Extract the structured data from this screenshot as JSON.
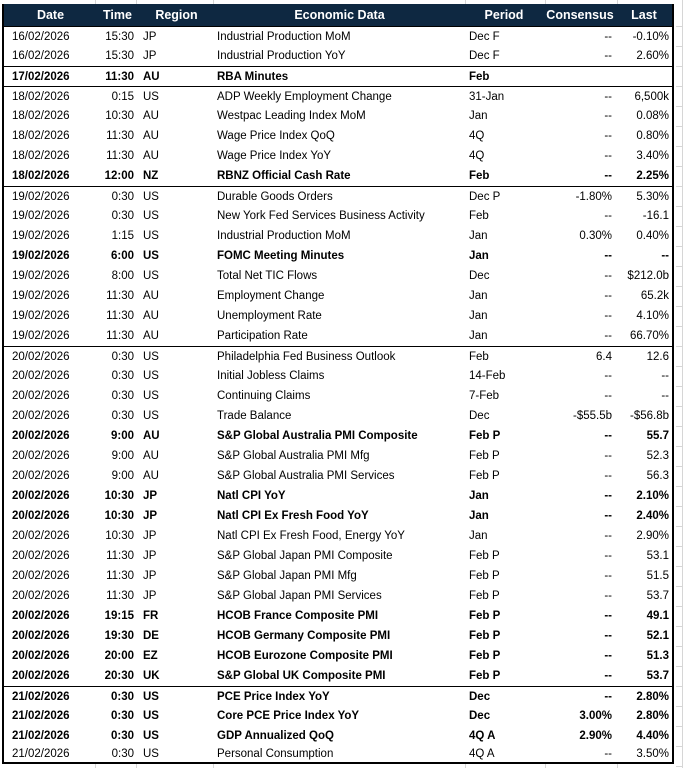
{
  "colors": {
    "header_bg": "#0e2841",
    "header_text": "#ffffff",
    "border": "#000000",
    "gridline": "#d6d6d6",
    "row_text": "#000000",
    "row_bg": "#ffffff"
  },
  "table": {
    "columns": [
      {
        "key": "date",
        "label": "Date"
      },
      {
        "key": "time",
        "label": "Time"
      },
      {
        "key": "region",
        "label": "Region"
      },
      {
        "key": "event",
        "label": "Economic Data"
      },
      {
        "key": "period",
        "label": "Period"
      },
      {
        "key": "consensus",
        "label": "Consensus"
      },
      {
        "key": "last",
        "label": "Last"
      }
    ],
    "rows": [
      {
        "date": "16/02/2026",
        "time": "15:30",
        "region": "JP",
        "event": "Industrial Production MoM",
        "period": "Dec F",
        "consensus": "--",
        "last": "-0.10%",
        "bold": false,
        "group_start": true
      },
      {
        "date": "16/02/2026",
        "time": "15:30",
        "region": "JP",
        "event": "Industrial Production YoY",
        "period": "Dec F",
        "consensus": "--",
        "last": "2.60%",
        "bold": false,
        "group_start": false
      },
      {
        "date": "17/02/2026",
        "time": "11:30",
        "region": "AU",
        "event": "RBA Minutes",
        "period": "Feb",
        "consensus": "",
        "last": "",
        "bold": true,
        "group_start": true
      },
      {
        "date": "18/02/2026",
        "time": "0:15",
        "region": "US",
        "event": "ADP Weekly Employment Change",
        "period": "31-Jan",
        "consensus": "--",
        "last": "6,500k",
        "bold": false,
        "group_start": true
      },
      {
        "date": "18/02/2026",
        "time": "10:30",
        "region": "AU",
        "event": "Westpac Leading Index MoM",
        "period": "Jan",
        "consensus": "--",
        "last": "0.08%",
        "bold": false,
        "group_start": false
      },
      {
        "date": "18/02/2026",
        "time": "11:30",
        "region": "AU",
        "event": "Wage Price Index QoQ",
        "period": "4Q",
        "consensus": "--",
        "last": "0.80%",
        "bold": false,
        "group_start": false
      },
      {
        "date": "18/02/2026",
        "time": "11:30",
        "region": "AU",
        "event": "Wage Price Index YoY",
        "period": "4Q",
        "consensus": "--",
        "last": "3.40%",
        "bold": false,
        "group_start": false
      },
      {
        "date": "18/02/2026",
        "time": "12:00",
        "region": "NZ",
        "event": "RBNZ Official Cash Rate",
        "period": "Feb",
        "consensus": "--",
        "last": "2.25%",
        "bold": true,
        "group_start": false
      },
      {
        "date": "19/02/2026",
        "time": "0:30",
        "region": "US",
        "event": "Durable Goods Orders",
        "period": "Dec P",
        "consensus": "-1.80%",
        "last": "5.30%",
        "bold": false,
        "group_start": true
      },
      {
        "date": "19/02/2026",
        "time": "0:30",
        "region": "US",
        "event": "New York Fed Services Business Activity",
        "period": "Feb",
        "consensus": "--",
        "last": "-16.1",
        "bold": false,
        "group_start": false
      },
      {
        "date": "19/02/2026",
        "time": "1:15",
        "region": "US",
        "event": "Industrial Production MoM",
        "period": "Jan",
        "consensus": "0.30%",
        "last": "0.40%",
        "bold": false,
        "group_start": false
      },
      {
        "date": "19/02/2026",
        "time": "6:00",
        "region": "US",
        "event": "FOMC Meeting Minutes",
        "period": "Jan",
        "consensus": "--",
        "last": "--",
        "bold": true,
        "group_start": false
      },
      {
        "date": "19/02/2026",
        "time": "8:00",
        "region": "US",
        "event": "Total Net TIC Flows",
        "period": "Dec",
        "consensus": "--",
        "last": "$212.0b",
        "bold": false,
        "group_start": false
      },
      {
        "date": "19/02/2026",
        "time": "11:30",
        "region": "AU",
        "event": "Employment Change",
        "period": "Jan",
        "consensus": "--",
        "last": "65.2k",
        "bold": false,
        "group_start": false
      },
      {
        "date": "19/02/2026",
        "time": "11:30",
        "region": "AU",
        "event": "Unemployment Rate",
        "period": "Jan",
        "consensus": "--",
        "last": "4.10%",
        "bold": false,
        "group_start": false
      },
      {
        "date": "19/02/2026",
        "time": "11:30",
        "region": "AU",
        "event": "Participation Rate",
        "period": "Jan",
        "consensus": "--",
        "last": "66.70%",
        "bold": false,
        "group_start": false
      },
      {
        "date": "20/02/2026",
        "time": "0:30",
        "region": "US",
        "event": "Philadelphia Fed Business Outlook",
        "period": "Feb",
        "consensus": "6.4",
        "last": "12.6",
        "bold": false,
        "group_start": true
      },
      {
        "date": "20/02/2026",
        "time": "0:30",
        "region": "US",
        "event": "Initial Jobless Claims",
        "period": "14-Feb",
        "consensus": "--",
        "last": "--",
        "bold": false,
        "group_start": false
      },
      {
        "date": "20/02/2026",
        "time": "0:30",
        "region": "US",
        "event": "Continuing Claims",
        "period": "7-Feb",
        "consensus": "--",
        "last": "--",
        "bold": false,
        "group_start": false
      },
      {
        "date": "20/02/2026",
        "time": "0:30",
        "region": "US",
        "event": "Trade Balance",
        "period": "Dec",
        "consensus": "-$55.5b",
        "last": "-$56.8b",
        "bold": false,
        "group_start": false
      },
      {
        "date": "20/02/2026",
        "time": "9:00",
        "region": "AU",
        "event": "S&P Global Australia PMI Composite",
        "period": "Feb P",
        "consensus": "--",
        "last": "55.7",
        "bold": true,
        "group_start": false
      },
      {
        "date": "20/02/2026",
        "time": "9:00",
        "region": "AU",
        "event": "S&P Global Australia PMI Mfg",
        "period": "Feb P",
        "consensus": "--",
        "last": "52.3",
        "bold": false,
        "group_start": false
      },
      {
        "date": "20/02/2026",
        "time": "9:00",
        "region": "AU",
        "event": "S&P Global Australia PMI Services",
        "period": "Feb P",
        "consensus": "--",
        "last": "56.3",
        "bold": false,
        "group_start": false
      },
      {
        "date": "20/02/2026",
        "time": "10:30",
        "region": "JP",
        "event": "Natl CPI YoY",
        "period": "Jan",
        "consensus": "--",
        "last": "2.10%",
        "bold": true,
        "group_start": false
      },
      {
        "date": "20/02/2026",
        "time": "10:30",
        "region": "JP",
        "event": "Natl CPI Ex Fresh Food YoY",
        "period": "Jan",
        "consensus": "--",
        "last": "2.40%",
        "bold": true,
        "group_start": false
      },
      {
        "date": "20/02/2026",
        "time": "10:30",
        "region": "JP",
        "event": "Natl CPI Ex Fresh Food, Energy YoY",
        "period": "Jan",
        "consensus": "--",
        "last": "2.90%",
        "bold": false,
        "group_start": false
      },
      {
        "date": "20/02/2026",
        "time": "11:30",
        "region": "JP",
        "event": "S&P Global Japan PMI Composite",
        "period": "Feb P",
        "consensus": "--",
        "last": "53.1",
        "bold": false,
        "group_start": false
      },
      {
        "date": "20/02/2026",
        "time": "11:30",
        "region": "JP",
        "event": "S&P Global Japan PMI Mfg",
        "period": "Feb P",
        "consensus": "--",
        "last": "51.5",
        "bold": false,
        "group_start": false
      },
      {
        "date": "20/02/2026",
        "time": "11:30",
        "region": "JP",
        "event": "S&P Global Japan PMI Services",
        "period": "Feb P",
        "consensus": "--",
        "last": "53.7",
        "bold": false,
        "group_start": false
      },
      {
        "date": "20/02/2026",
        "time": "19:15",
        "region": "FR",
        "event": "HCOB France Composite PMI",
        "period": "Feb P",
        "consensus": "--",
        "last": "49.1",
        "bold": true,
        "group_start": false
      },
      {
        "date": "20/02/2026",
        "time": "19:30",
        "region": "DE",
        "event": "HCOB Germany Composite PMI",
        "period": "Feb P",
        "consensus": "--",
        "last": "52.1",
        "bold": true,
        "group_start": false
      },
      {
        "date": "20/02/2026",
        "time": "20:00",
        "region": "EZ",
        "event": "HCOB Eurozone Composite PMI",
        "period": "Feb P",
        "consensus": "--",
        "last": "51.3",
        "bold": true,
        "group_start": false
      },
      {
        "date": "20/02/2026",
        "time": "20:30",
        "region": "UK",
        "event": "S&P Global UK Composite PMI",
        "period": "Feb P",
        "consensus": "--",
        "last": "53.7",
        "bold": true,
        "group_start": false
      },
      {
        "date": "21/02/2026",
        "time": "0:30",
        "region": "US",
        "event": "PCE Price Index YoY",
        "period": "Dec",
        "consensus": "--",
        "last": "2.80%",
        "bold": true,
        "group_start": true
      },
      {
        "date": "21/02/2026",
        "time": "0:30",
        "region": "US",
        "event": "Core PCE Price Index YoY",
        "period": "Dec",
        "consensus": "3.00%",
        "last": "2.80%",
        "bold": true,
        "group_start": false
      },
      {
        "date": "21/02/2026",
        "time": "0:30",
        "region": "US",
        "event": "GDP Annualized QoQ",
        "period": "4Q A",
        "consensus": "2.90%",
        "last": "4.40%",
        "bold": true,
        "group_start": false
      },
      {
        "date": "21/02/2026",
        "time": "0:30",
        "region": "US",
        "event": "Personal Consumption",
        "period": "4Q A",
        "consensus": "--",
        "last": "3.50%",
        "bold": false,
        "group_start": false
      }
    ]
  }
}
